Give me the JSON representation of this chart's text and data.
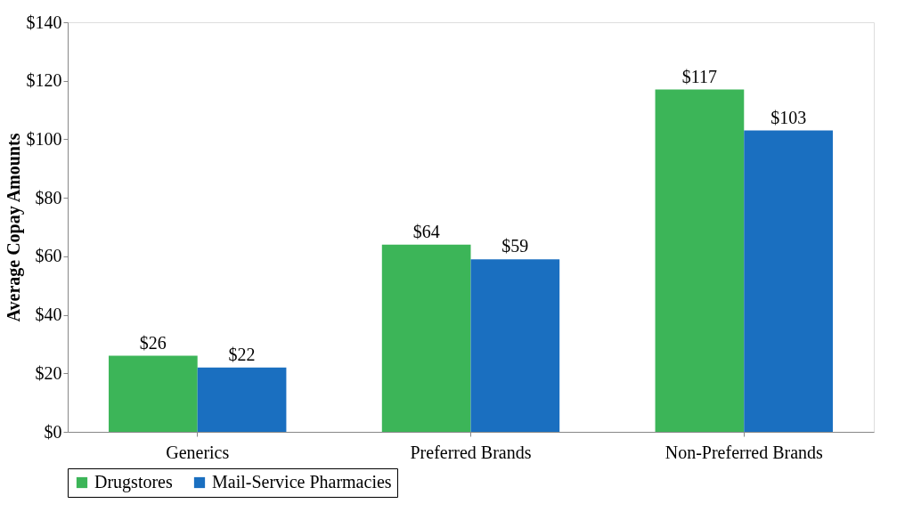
{
  "chart_data": {
    "type": "bar",
    "ylabel": "Average Copay Amounts",
    "categories": [
      "Generics",
      "Preferred Brands",
      "Non-Preferred Brands"
    ],
    "series": [
      {
        "name": "Drugstores",
        "color": "#3cb558",
        "values": [
          26,
          64,
          117
        ],
        "value_labels": [
          "$26",
          "$64",
          "$117"
        ]
      },
      {
        "name": "Mail-Service Pharmacies",
        "color": "#1a6fc0",
        "values": [
          22,
          59,
          103
        ],
        "value_labels": [
          "$22",
          "$59",
          "$103"
        ]
      }
    ],
    "ylim": [
      0,
      140
    ],
    "yticks": [
      {
        "value": 0,
        "label": "$0"
      },
      {
        "value": 20,
        "label": "$20"
      },
      {
        "value": 40,
        "label": "$40"
      },
      {
        "value": 60,
        "label": "$60"
      },
      {
        "value": 80,
        "label": "$80"
      },
      {
        "value": 100,
        "label": "$100"
      },
      {
        "value": 120,
        "label": "$120"
      },
      {
        "value": 140,
        "label": "$140"
      }
    ],
    "grid": false,
    "legend": "bottom"
  }
}
